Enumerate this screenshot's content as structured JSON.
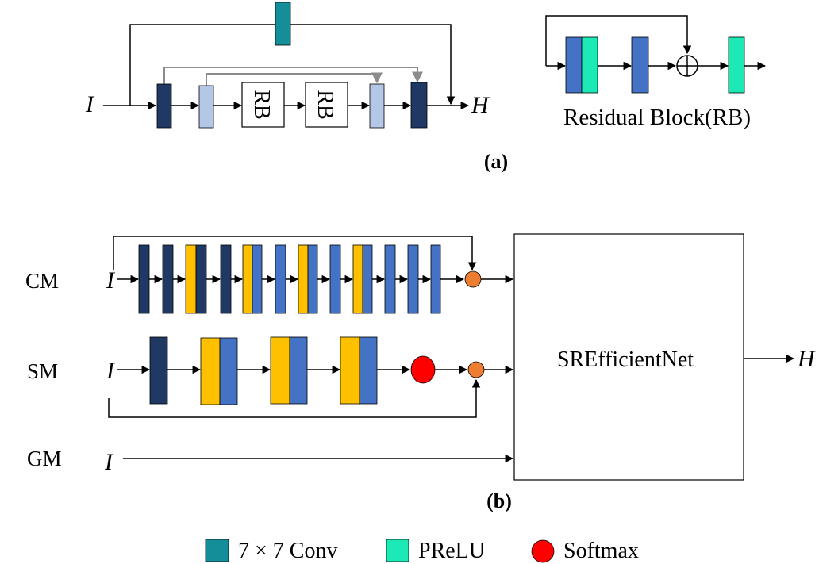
{
  "colors": {
    "dark_navy": "#1F3864",
    "light_blue": "#B4C7E7",
    "teal": "#148F9A",
    "mint": "#1DE9B6",
    "mid_blue": "#4472C4",
    "gold": "#FFC000",
    "orange": "#ED7D31",
    "red": "#FF0000",
    "gray": "#8C8C8C"
  },
  "panel_a": {
    "input_label": "I",
    "output_label": "H",
    "rb_label_1": "RB",
    "rb_label_2": "RB",
    "rb_title": "Residual Block(RB)",
    "caption": "(a)"
  },
  "panel_b": {
    "cm_label": "CM",
    "sm_label": "SM",
    "gm_label": "GM",
    "input_cm": "I",
    "input_sm": "I",
    "input_gm": "I",
    "net_label": "SREfficientNet",
    "output_label": "H",
    "caption": "(b)"
  },
  "legend": {
    "conv_label": "7 × 7 Conv",
    "prelu_label": "PReLU",
    "softmax_label": "Softmax"
  }
}
